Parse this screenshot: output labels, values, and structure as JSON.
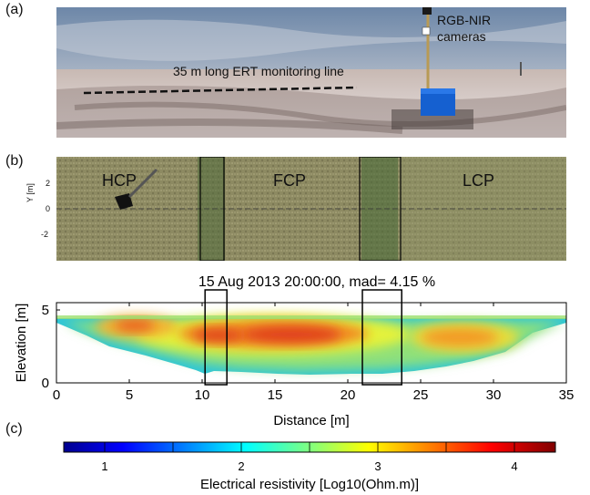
{
  "panel_labels": {
    "a": "(a)",
    "b": "(b)",
    "c": "(c)"
  },
  "photo": {
    "line_label": "35 m long ERT monitoring line",
    "camera_label_line1": "RGB-NIR",
    "camera_label_line2": "cameras"
  },
  "aerial": {
    "zones": [
      "HCP",
      "FCP",
      "LCP"
    ],
    "ylabel": "Y [m]",
    "yticks": [
      "2",
      "0",
      "-2"
    ]
  },
  "chart_data": [
    {
      "type": "heatmap",
      "title": "15 Aug 2013 20:00:00, mad= 4.15 %",
      "xlabel": "Distance [m]",
      "ylabel": "Elevation [m]",
      "xlim": [
        0,
        35
      ],
      "ylim": [
        0,
        5.5
      ],
      "xticks": [
        0,
        5,
        10,
        15,
        20,
        25,
        30,
        35
      ],
      "yticks": [
        0,
        5
      ],
      "highlight_boxes_x": [
        [
          10.2,
          11.7
        ],
        [
          21.0,
          23.7
        ]
      ]
    },
    {
      "type": "colorbar",
      "label": "Electrical resistivity [Log10(Ohm.m)]",
      "range": [
        0.7,
        4.3
      ],
      "ticks": [
        1,
        2,
        3,
        4
      ]
    }
  ]
}
